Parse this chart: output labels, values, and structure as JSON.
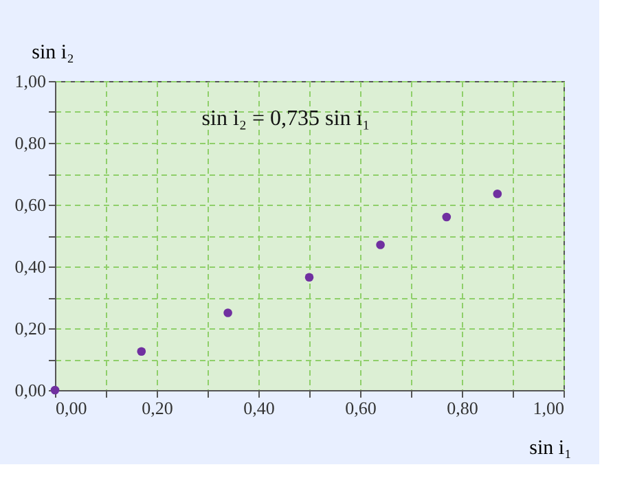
{
  "chart_data": {
    "type": "scatter",
    "xlabel": "sin i₁",
    "ylabel": "sin i₂",
    "annotations": [
      "sin i₂ = 0,735 sin i₁"
    ],
    "x": [
      0,
      0.17,
      0.34,
      0.5,
      0.64,
      0.77,
      0.87
    ],
    "series": [
      {
        "color": "#7030a0",
        "values": [
          0,
          0.125,
          0.25,
          0.365,
          0.47,
          0.56,
          0.635
        ]
      }
    ],
    "xlim": [
      0,
      1
    ],
    "ylim": [
      0,
      1
    ],
    "xticks": [
      {
        "value": 0,
        "label": "0,00"
      },
      {
        "value": 0.1,
        "label": null
      },
      {
        "value": 0.2,
        "label": "0,20"
      },
      {
        "value": 0.3,
        "label": null
      },
      {
        "value": 0.4,
        "label": "0,40"
      },
      {
        "value": 0.5,
        "label": null
      },
      {
        "value": 0.6,
        "label": "0,60"
      },
      {
        "value": 0.7,
        "label": null
      },
      {
        "value": 0.8,
        "label": "0,80"
      },
      {
        "value": 0.9,
        "label": null
      },
      {
        "value": 1,
        "label": "1,00"
      }
    ],
    "yticks": [
      {
        "value": 0,
        "label": "0,00"
      },
      {
        "value": 0.1,
        "label": null
      },
      {
        "value": 0.2,
        "label": "0,20"
      },
      {
        "value": 0.3,
        "label": null
      },
      {
        "value": 0.4,
        "label": "0,40"
      },
      {
        "value": 0.5,
        "label": null
      },
      {
        "value": 0.6,
        "label": "0,60"
      },
      {
        "value": 0.7,
        "label": null
      },
      {
        "value": 0.8,
        "label": "0,80"
      },
      {
        "value": 0.9,
        "label": null
      },
      {
        "value": 1,
        "label": "1,00"
      }
    ],
    "grid": true,
    "marker": "circle"
  }
}
